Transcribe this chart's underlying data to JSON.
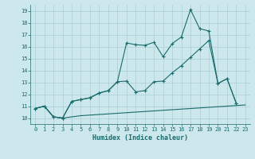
{
  "xlabel": "Humidex (Indice chaleur)",
  "bg_color": "#cce8ec",
  "grid_color": "#aacdd4",
  "line_color": "#1a6b6b",
  "xlim": [
    -0.5,
    23.5
  ],
  "ylim": [
    9.5,
    19.5
  ],
  "xticks": [
    0,
    1,
    2,
    3,
    4,
    5,
    6,
    7,
    8,
    9,
    10,
    11,
    12,
    13,
    14,
    15,
    16,
    17,
    18,
    19,
    20,
    21,
    22,
    23
  ],
  "yticks": [
    10,
    11,
    12,
    13,
    14,
    15,
    16,
    17,
    18,
    19
  ],
  "line1_x": [
    0,
    1,
    2,
    3,
    4,
    5,
    6,
    7,
    8,
    9,
    10,
    11,
    12,
    13,
    14,
    15,
    16,
    17,
    18,
    19,
    20,
    21,
    22,
    23
  ],
  "line1_y": [
    10.8,
    11.0,
    10.1,
    10.0,
    11.4,
    11.55,
    11.7,
    12.1,
    12.3,
    13.05,
    16.3,
    16.15,
    16.1,
    16.35,
    15.15,
    16.25,
    16.8,
    19.1,
    17.5,
    17.3,
    12.9,
    13.3,
    11.25,
    null
  ],
  "line2_x": [
    0,
    1,
    2,
    3,
    4,
    5,
    6,
    7,
    8,
    9,
    10,
    11,
    12,
    13,
    14,
    15,
    16,
    17,
    18,
    19,
    20,
    21,
    22,
    23
  ],
  "line2_y": [
    10.8,
    11.0,
    10.1,
    10.0,
    11.4,
    11.55,
    11.7,
    12.1,
    12.3,
    13.05,
    13.1,
    12.2,
    12.3,
    13.05,
    13.1,
    13.8,
    14.4,
    15.1,
    15.8,
    16.5,
    12.9,
    13.3,
    11.25,
    null
  ],
  "line3_x": [
    0,
    1,
    2,
    3,
    4,
    5,
    6,
    7,
    8,
    9,
    10,
    11,
    12,
    13,
    14,
    15,
    16,
    17,
    18,
    19,
    20,
    21,
    22,
    23
  ],
  "line3_y": [
    10.8,
    11.0,
    10.1,
    10.0,
    10.1,
    10.2,
    10.25,
    10.3,
    10.35,
    10.4,
    10.45,
    10.5,
    10.55,
    10.6,
    10.65,
    10.7,
    10.75,
    10.8,
    10.85,
    10.9,
    10.95,
    11.0,
    11.05,
    11.1
  ]
}
